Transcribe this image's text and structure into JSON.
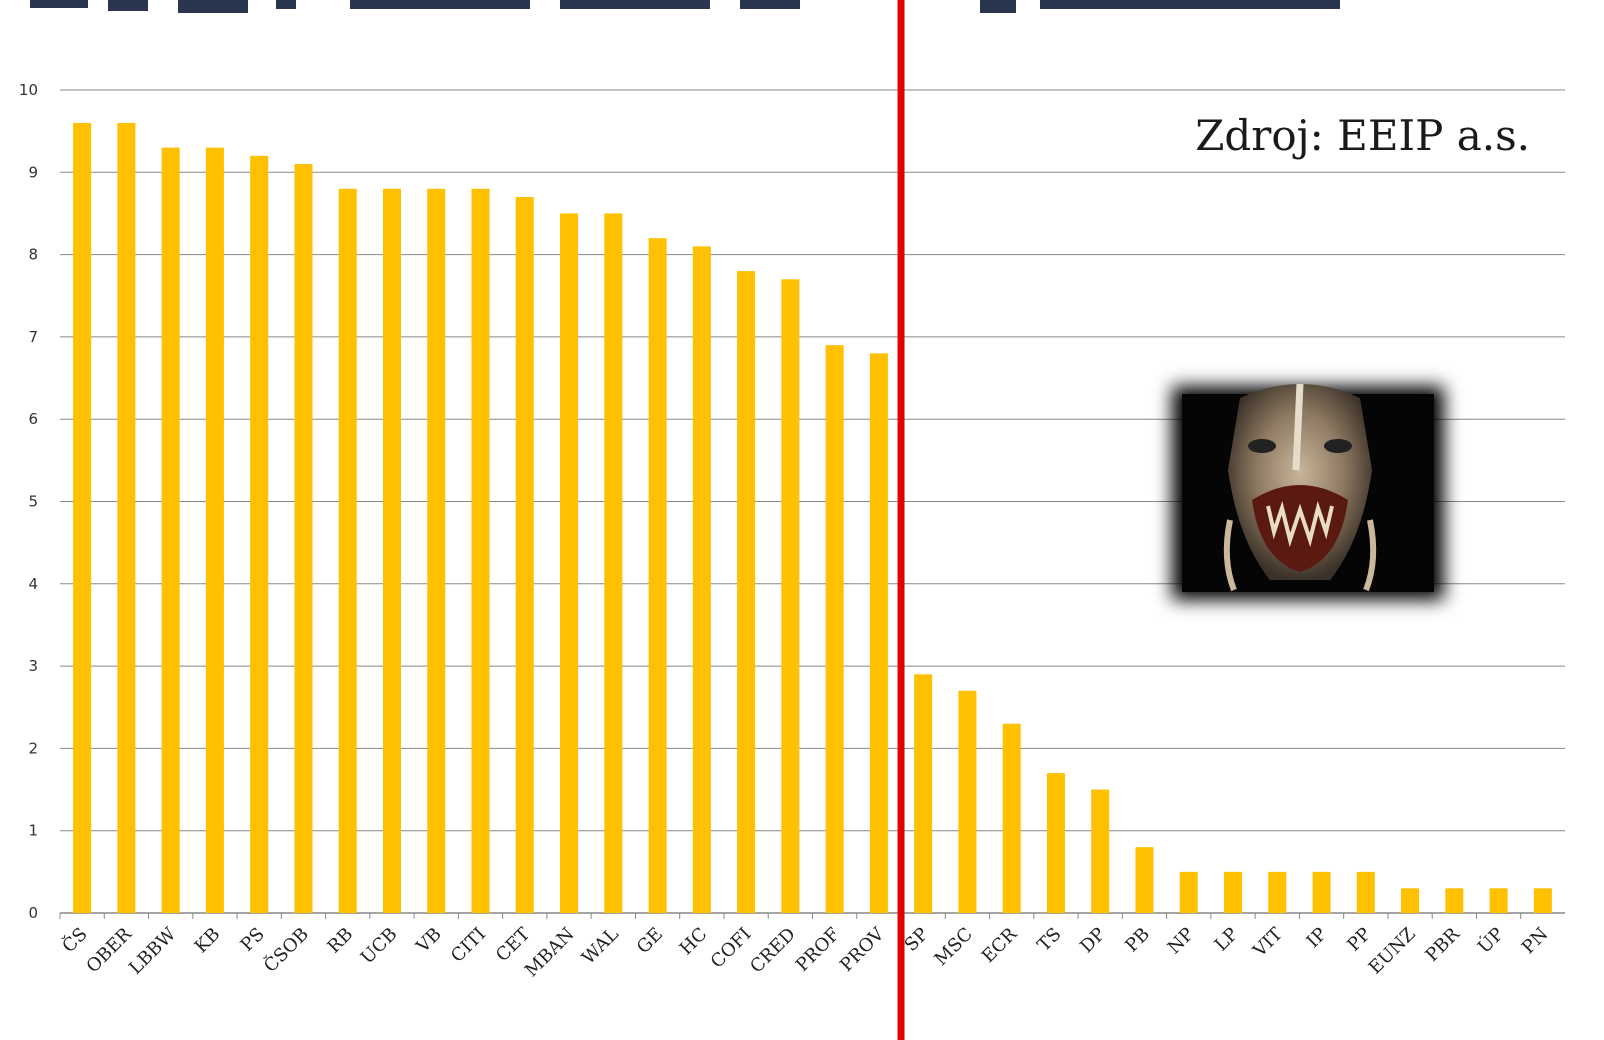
{
  "chart_data": {
    "type": "bar",
    "title": "",
    "xlabel": "",
    "ylabel": "",
    "ylim": [
      0,
      10
    ],
    "yticks": [
      0,
      1,
      2,
      3,
      4,
      5,
      6,
      7,
      8,
      9,
      10
    ],
    "grid": true,
    "categories": [
      "ČS",
      "OBER",
      "LBBW",
      "KB",
      "PS",
      "ČSOB",
      "RB",
      "UCB",
      "VB",
      "CITI",
      "CET",
      "MBAN",
      "WAL",
      "GE",
      "HC",
      "COFI",
      "CRED",
      "PROF",
      "PROV",
      "SP",
      "MSC",
      "ECR",
      "TS",
      "DP",
      "PB",
      "NP",
      "LP",
      "VIT",
      "IP",
      "PP",
      "EUNZ",
      "PBR",
      "ÚP",
      "PN"
    ],
    "values": [
      9.6,
      9.6,
      9.3,
      9.3,
      9.2,
      9.1,
      8.8,
      8.8,
      8.8,
      8.8,
      8.7,
      8.5,
      8.5,
      8.2,
      8.1,
      7.8,
      7.7,
      6.9,
      6.8,
      2.9,
      2.7,
      2.3,
      1.7,
      1.5,
      0.8,
      0.5,
      0.5,
      0.5,
      0.5,
      0.5,
      0.3,
      0.3,
      0.3,
      0.3
    ],
    "divider_after_category": "PROV",
    "colors": {
      "bar": "#FFC000",
      "divider": "#E00000",
      "grid": "#888888"
    },
    "annotation": "Zdroj: EEIP a.s."
  }
}
